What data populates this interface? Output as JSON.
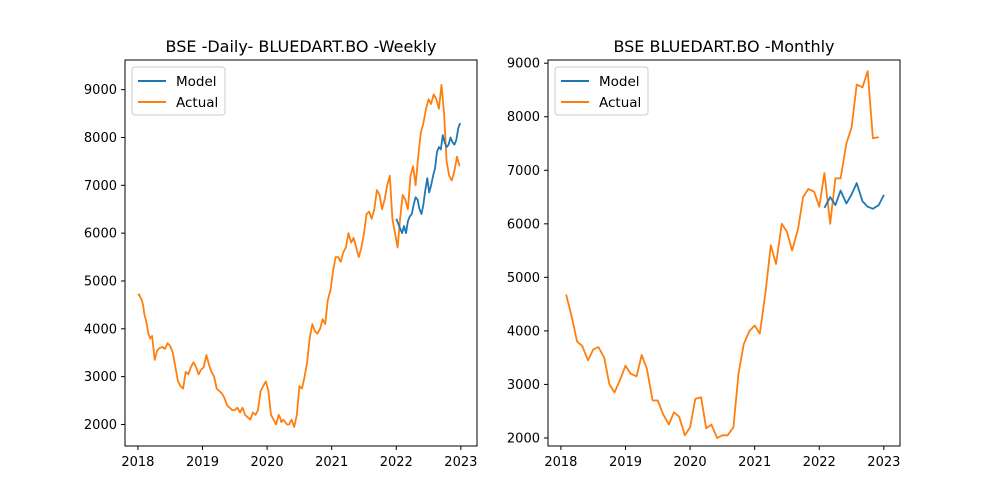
{
  "chart_data": [
    {
      "type": "line",
      "title": "BSE -Daily- BLUEDART.BO -Weekly",
      "xlabel": "",
      "ylabel": "",
      "xlim": [
        2017.8,
        2023.25
      ],
      "ylim": [
        1550,
        9620
      ],
      "xticks": [
        2018,
        2019,
        2020,
        2021,
        2022,
        2023
      ],
      "xtick_labels": [
        "2018",
        "2019",
        "2020",
        "2021",
        "2022",
        "2023"
      ],
      "yticks": [
        2000,
        3000,
        4000,
        5000,
        6000,
        7000,
        8000,
        9000
      ],
      "ytick_labels": [
        "2000",
        "3000",
        "4000",
        "5000",
        "6000",
        "7000",
        "8000",
        "9000"
      ],
      "grid": false,
      "legend": {
        "location": "upper left",
        "entries": [
          "Model",
          "Actual"
        ]
      },
      "series": [
        {
          "name": "Actual",
          "color": "#ff7f0e",
          "x": [
            2018.0,
            2018.02,
            2018.04,
            2018.06,
            2018.08,
            2018.1,
            2018.13,
            2018.16,
            2018.19,
            2018.22,
            2018.26,
            2018.3,
            2018.34,
            2018.38,
            2018.42,
            2018.46,
            2018.5,
            2018.54,
            2018.58,
            2018.62,
            2018.66,
            2018.7,
            2018.74,
            2018.78,
            2018.82,
            2018.86,
            2018.9,
            2018.94,
            2018.98,
            2019.02,
            2019.06,
            2019.1,
            2019.14,
            2019.18,
            2019.22,
            2019.26,
            2019.3,
            2019.34,
            2019.38,
            2019.42,
            2019.46,
            2019.5,
            2019.54,
            2019.58,
            2019.62,
            2019.66,
            2019.7,
            2019.74,
            2019.78,
            2019.82,
            2019.86,
            2019.9,
            2019.94,
            2019.98,
            2020.02,
            2020.06,
            2020.1,
            2020.14,
            2020.18,
            2020.2,
            2020.22,
            2020.25,
            2020.28,
            2020.31,
            2020.34,
            2020.38,
            2020.42,
            2020.46,
            2020.5,
            2020.54,
            2020.58,
            2020.62,
            2020.66,
            2020.7,
            2020.74,
            2020.78,
            2020.82,
            2020.86,
            2020.9,
            2020.94,
            2020.98,
            2021.02,
            2021.06,
            2021.1,
            2021.14,
            2021.18,
            2021.22,
            2021.26,
            2021.3,
            2021.34,
            2021.38,
            2021.42,
            2021.46,
            2021.5,
            2021.54,
            2021.58,
            2021.62,
            2021.66,
            2021.7,
            2021.74,
            2021.78,
            2021.82,
            2021.86,
            2021.9,
            2021.94,
            2021.98,
            2022.02,
            2022.06,
            2022.1,
            2022.14,
            2022.18,
            2022.22,
            2022.26,
            2022.3,
            2022.34,
            2022.38,
            2022.42,
            2022.46,
            2022.5,
            2022.54,
            2022.58,
            2022.62,
            2022.66,
            2022.7,
            2022.74,
            2022.78,
            2022.82,
            2022.86,
            2022.9,
            2022.94,
            2022.98
          ],
          "values": [
            4700,
            4720,
            4650,
            4600,
            4500,
            4300,
            4150,
            3900,
            3800,
            3850,
            3350,
            3550,
            3600,
            3620,
            3580,
            3700,
            3640,
            3500,
            3200,
            2900,
            2800,
            2750,
            3100,
            3050,
            3200,
            3300,
            3200,
            3050,
            3150,
            3200,
            3450,
            3250,
            3100,
            3000,
            2750,
            2700,
            2650,
            2550,
            2400,
            2350,
            2300,
            2300,
            2350,
            2250,
            2350,
            2200,
            2150,
            2100,
            2250,
            2200,
            2300,
            2700,
            2800,
            2900,
            2700,
            2200,
            2100,
            2000,
            2200,
            2150,
            2050,
            2100,
            2050,
            2000,
            2000,
            2100,
            1950,
            2200,
            2800,
            2750,
            3000,
            3300,
            3800,
            4100,
            3950,
            3900,
            4000,
            4200,
            4100,
            4600,
            4800,
            5200,
            5500,
            5500,
            5400,
            5600,
            5700,
            6000,
            5800,
            5900,
            5700,
            5500,
            5700,
            6000,
            6400,
            6450,
            6300,
            6500,
            6900,
            6800,
            6500,
            6700,
            7000,
            7200,
            6300,
            6000,
            5700,
            6300,
            6800,
            6700,
            6500,
            7200,
            7400,
            7000,
            7600,
            8100,
            8300,
            8600,
            8800,
            8700,
            8900,
            8800,
            8600,
            9100,
            8500,
            7500,
            7200,
            7100,
            7300,
            7600,
            7400
          ]
        },
        {
          "name": "Model",
          "color": "#1f77b4",
          "x": [
            2022.0,
            2022.03,
            2022.06,
            2022.09,
            2022.12,
            2022.15,
            2022.18,
            2022.21,
            2022.24,
            2022.27,
            2022.3,
            2022.33,
            2022.36,
            2022.39,
            2022.42,
            2022.45,
            2022.48,
            2022.51,
            2022.54,
            2022.57,
            2022.6,
            2022.63,
            2022.66,
            2022.69,
            2022.72,
            2022.75,
            2022.78,
            2022.81,
            2022.84,
            2022.87,
            2022.9,
            2022.93,
            2022.96,
            2022.99
          ],
          "values": [
            6300,
            6200,
            6100,
            6000,
            6150,
            6000,
            6250,
            6350,
            6400,
            6600,
            6750,
            6700,
            6500,
            6400,
            6600,
            6900,
            7150,
            6850,
            7000,
            7200,
            7350,
            7700,
            7800,
            7750,
            8050,
            7900,
            7800,
            7850,
            8000,
            7900,
            7850,
            7950,
            8200,
            8300
          ]
        }
      ]
    },
    {
      "type": "line",
      "title": "BSE BLUEDART.BO -Monthly",
      "xlabel": "",
      "ylabel": "",
      "xlim": [
        2017.8,
        2023.25
      ],
      "ylim": [
        1850,
        9060
      ],
      "xticks": [
        2018,
        2019,
        2020,
        2021,
        2022,
        2023
      ],
      "xtick_labels": [
        "2018",
        "2019",
        "2020",
        "2021",
        "2022",
        "2023"
      ],
      "yticks": [
        2000,
        3000,
        4000,
        5000,
        6000,
        7000,
        8000,
        9000
      ],
      "ytick_labels": [
        "2000",
        "3000",
        "4000",
        "5000",
        "6000",
        "7000",
        "8000",
        "9000"
      ],
      "grid": false,
      "legend": {
        "location": "upper left",
        "entries": [
          "Model",
          "Actual"
        ]
      },
      "series": [
        {
          "name": "Actual",
          "color": "#ff7f0e",
          "x": [
            2018.08,
            2018.17,
            2018.25,
            2018.33,
            2018.42,
            2018.5,
            2018.58,
            2018.67,
            2018.75,
            2018.83,
            2018.92,
            2019.0,
            2019.08,
            2019.17,
            2019.25,
            2019.33,
            2019.42,
            2019.5,
            2019.58,
            2019.67,
            2019.75,
            2019.83,
            2019.92,
            2020.0,
            2020.08,
            2020.17,
            2020.25,
            2020.33,
            2020.42,
            2020.5,
            2020.58,
            2020.67,
            2020.75,
            2020.83,
            2020.92,
            2021.0,
            2021.08,
            2021.17,
            2021.25,
            2021.33,
            2021.42,
            2021.5,
            2021.58,
            2021.67,
            2021.75,
            2021.83,
            2021.92,
            2022.0,
            2022.08,
            2022.17,
            2022.25,
            2022.33,
            2022.42,
            2022.5,
            2022.58,
            2022.67,
            2022.75,
            2022.83,
            2022.92
          ],
          "values": [
            4680,
            4250,
            3800,
            3720,
            3450,
            3650,
            3700,
            3500,
            3000,
            2850,
            3100,
            3350,
            3200,
            3150,
            3550,
            3300,
            2700,
            2700,
            2450,
            2250,
            2480,
            2400,
            2050,
            2200,
            2730,
            2760,
            2180,
            2250,
            2000,
            2050,
            2050,
            2200,
            3200,
            3750,
            4000,
            4100,
            3950,
            4750,
            5600,
            5250,
            6000,
            5850,
            5500,
            5900,
            6500,
            6650,
            6600,
            6320,
            6950,
            6000,
            6850,
            6850,
            7500,
            7800,
            8600,
            8550,
            8850,
            7600,
            7620
          ]
        },
        {
          "name": "Model",
          "color": "#1f77b4",
          "x": [
            2022.08,
            2022.17,
            2022.25,
            2022.33,
            2022.42,
            2022.5,
            2022.58,
            2022.67,
            2022.75,
            2022.83,
            2022.92,
            2023.0
          ],
          "values": [
            6300,
            6500,
            6350,
            6620,
            6380,
            6550,
            6760,
            6420,
            6320,
            6280,
            6350,
            6540
          ]
        }
      ]
    }
  ]
}
